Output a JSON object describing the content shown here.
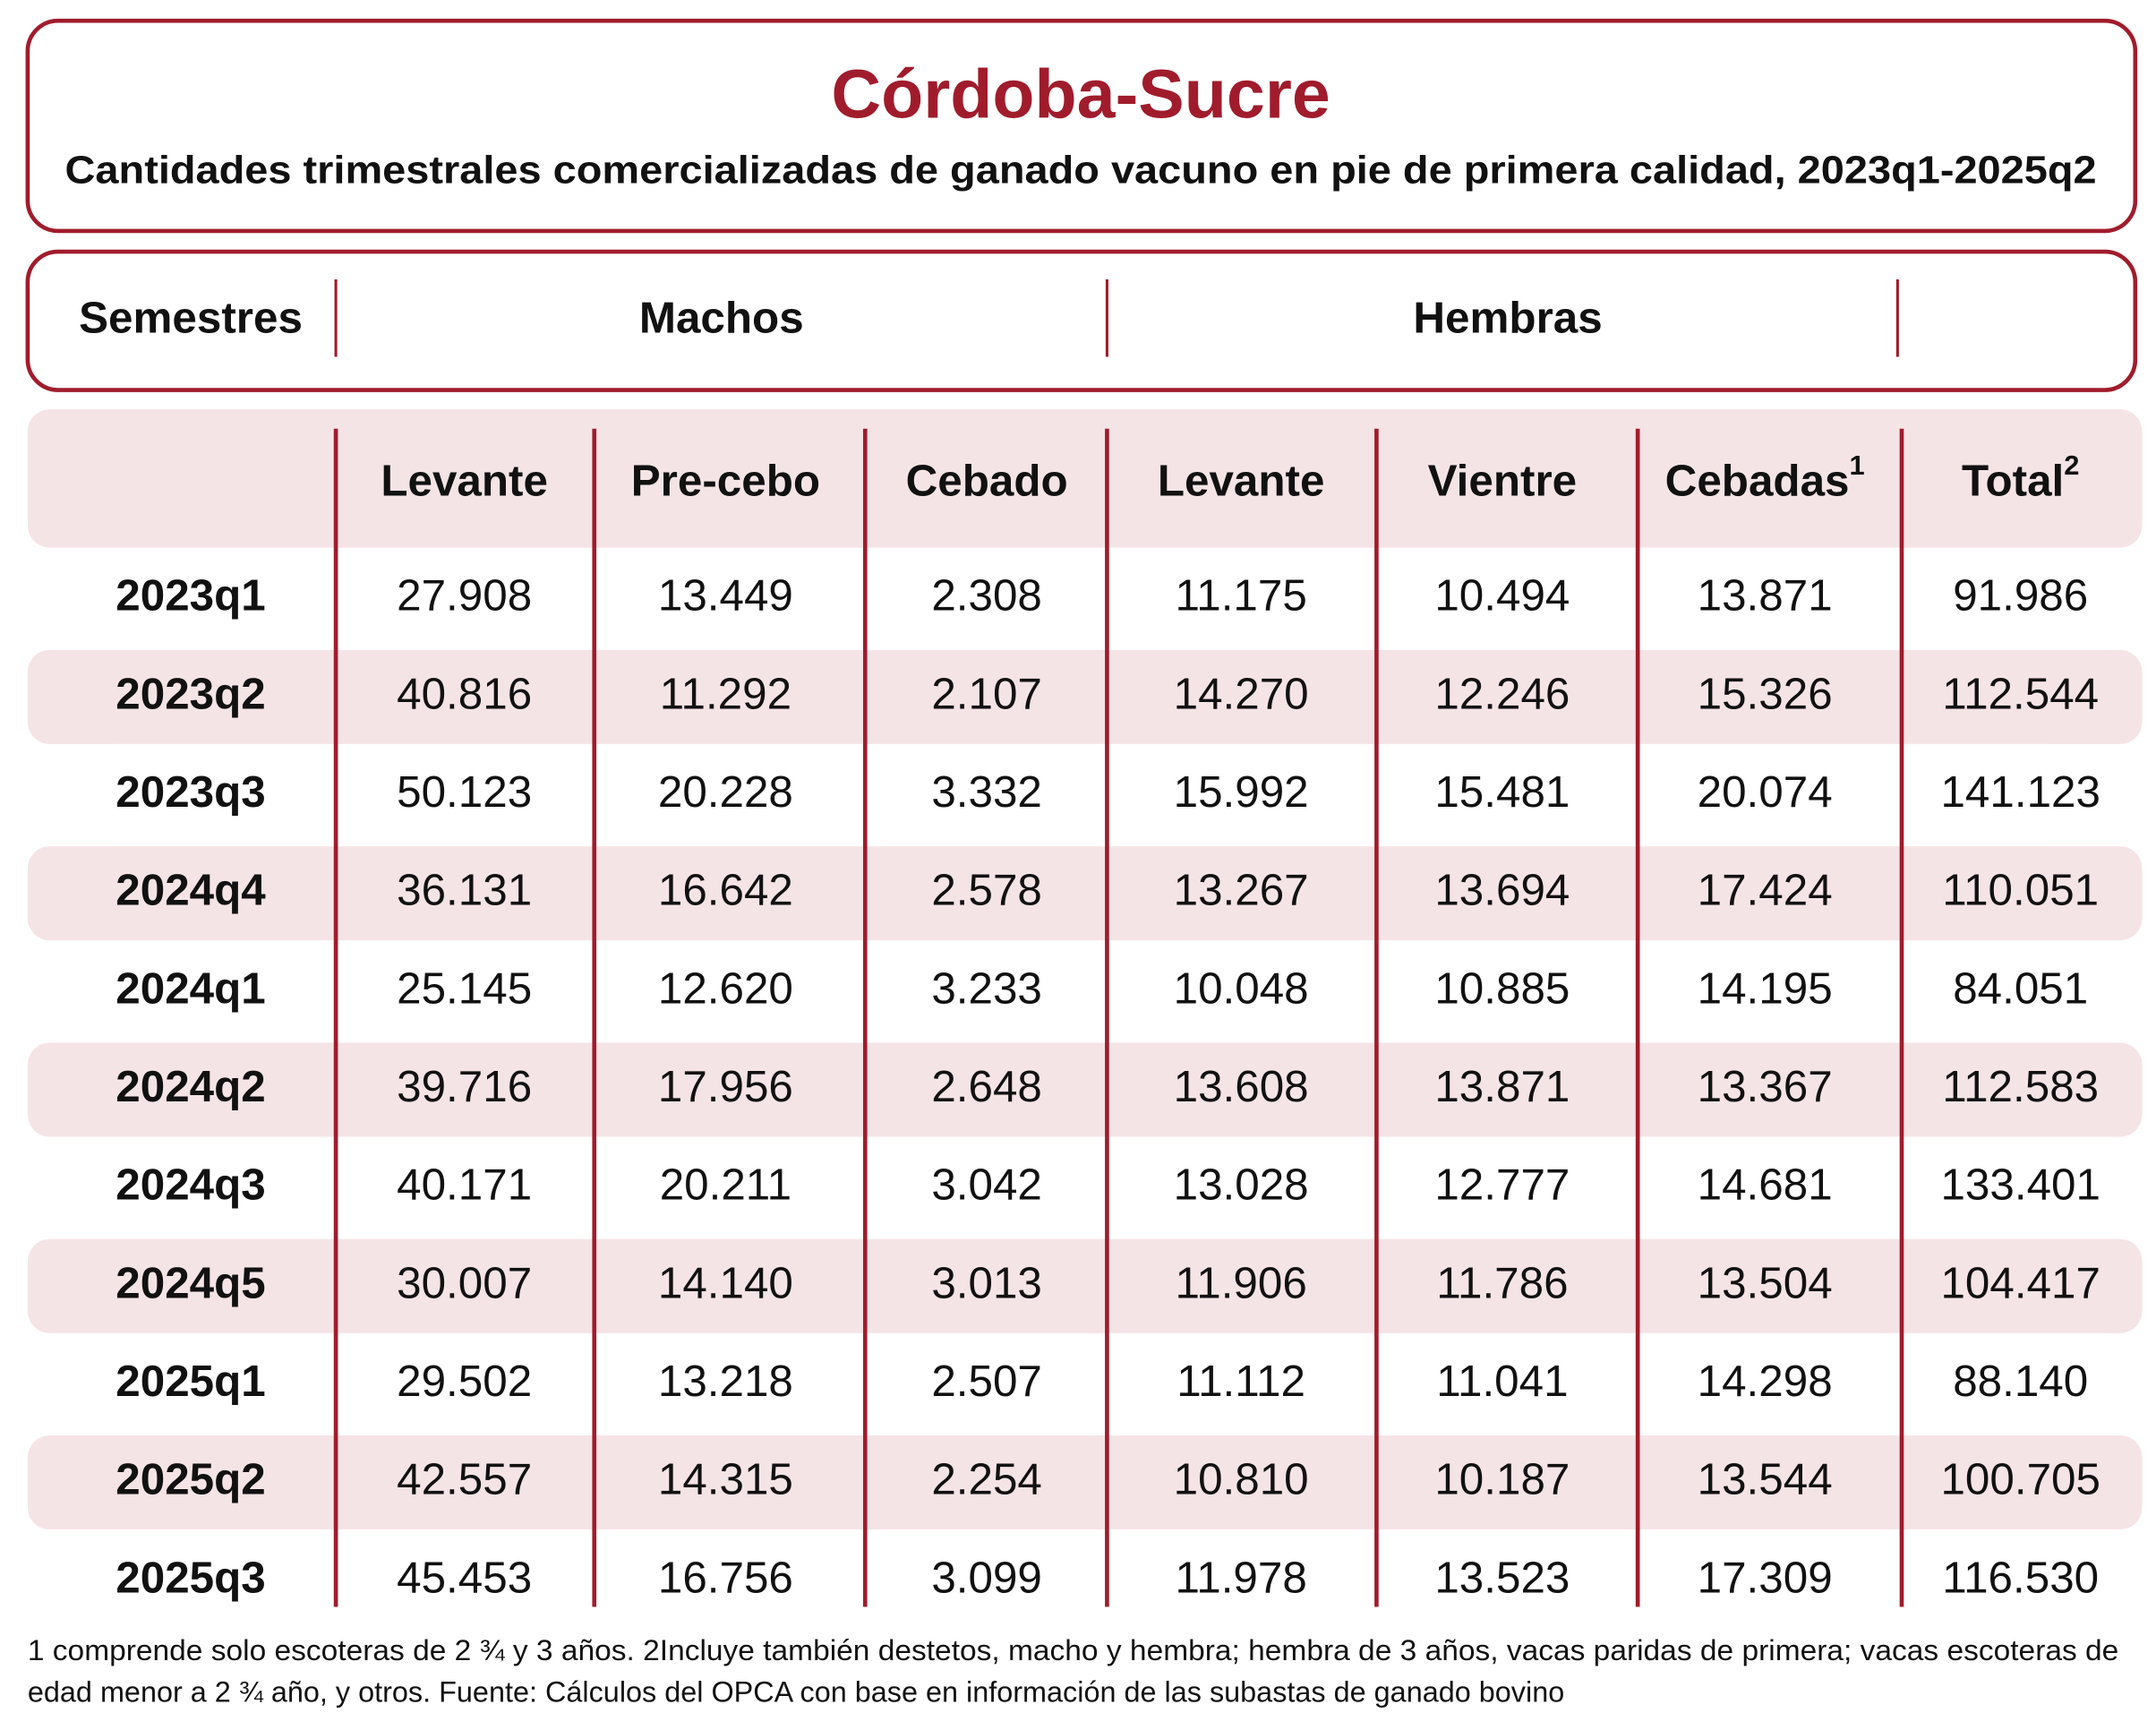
{
  "header": {
    "title": "Córdoba-Sucre",
    "subtitle": "Cantidades trimestrales comercializadas de ganado vacuno en pie de primera calidad, 2023q1-2025q2"
  },
  "groups": [
    "Semestres",
    "Machos",
    "Hembras"
  ],
  "table": {
    "columns": [
      {
        "label": "Levante"
      },
      {
        "label": "Pre-cebo"
      },
      {
        "label": "Cebado"
      },
      {
        "label": "Levante"
      },
      {
        "label": "Vientre"
      },
      {
        "label": "Cebadas",
        "sup": "1"
      },
      {
        "label": "Total",
        "sup": "2"
      }
    ],
    "rows": [
      [
        "2023q1",
        "27.908",
        "13.449",
        "2.308",
        "11.175",
        "10.494",
        "13.871",
        "91.986"
      ],
      [
        "2023q2",
        "40.816",
        "11.292",
        "2.107",
        "14.270",
        "12.246",
        "15.326",
        "112.544"
      ],
      [
        "2023q3",
        "50.123",
        "20.228",
        "3.332",
        "15.992",
        "15.481",
        "20.074",
        "141.123"
      ],
      [
        "2024q4",
        "36.131",
        "16.642",
        "2.578",
        "13.267",
        "13.694",
        "17.424",
        "110.051"
      ],
      [
        "2024q1",
        "25.145",
        "12.620",
        "3.233",
        "10.048",
        "10.885",
        "14.195",
        "84.051"
      ],
      [
        "2024q2",
        "39.716",
        "17.956",
        "2.648",
        "13.608",
        "13.871",
        "13.367",
        "112.583"
      ],
      [
        "2024q3",
        "40.171",
        "20.211",
        "3.042",
        "13.028",
        "12.777",
        "14.681",
        "133.401"
      ],
      [
        "2024q5",
        "30.007",
        "14.140",
        "3.013",
        "11.906",
        "11.786",
        "13.504",
        "104.417"
      ],
      [
        "2025q1",
        "29.502",
        "13.218",
        "2.507",
        "11.112",
        "11.041",
        "14.298",
        "88.140"
      ],
      [
        "2025q2",
        "42.557",
        "14.315",
        "2.254",
        "10.810",
        "10.187",
        "13.544",
        "100.705"
      ],
      [
        "2025q3",
        "45.453",
        "16.756",
        "3.099",
        "11.978",
        "13.523",
        "17.309",
        "116.530"
      ]
    ]
  },
  "footnote": [
    "1 comprende solo escoteras de 2 ¾ y 3 años. 2Incluye también destetos, macho y hembra; hembra de 3 años, vacas paridas de primera; vacas escoteras de",
    "edad menor a 2 ¾ año, y otros. Fuente: Cálculos del OPCA con base en información de las subastas de ganado bovino"
  ]
}
